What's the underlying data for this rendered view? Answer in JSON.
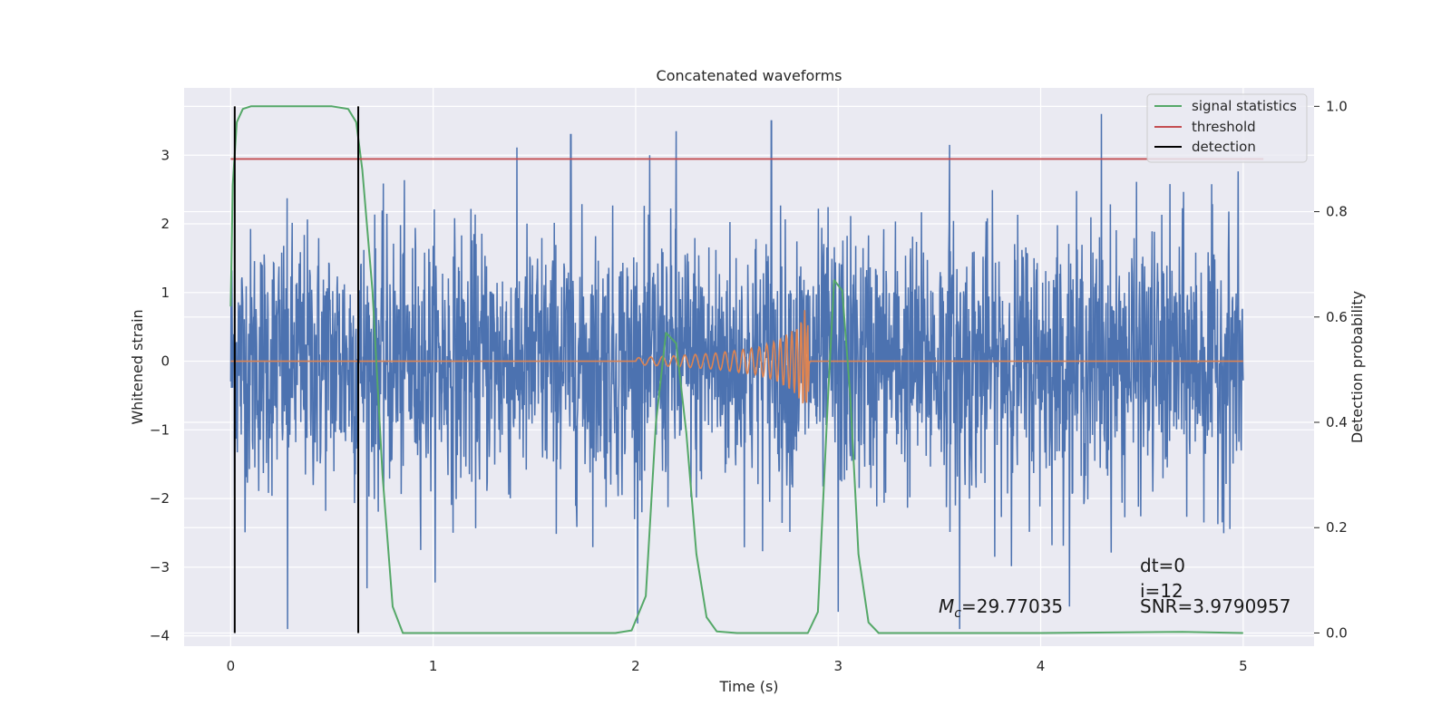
{
  "chart_data": {
    "type": "line",
    "title": "Concatenated waveforms",
    "xlabel": "Time (s)",
    "ylabel": "Whitened strain",
    "y2label": "Detection probability",
    "xlim": [
      -0.23,
      5.35
    ],
    "ylim": [
      -4.15,
      3.98
    ],
    "y2lim": [
      -0.025,
      1.035
    ],
    "x_ticks": [
      0,
      1,
      2,
      3,
      4,
      5
    ],
    "y_ticks": [
      -4,
      -3,
      -2,
      -1,
      0,
      1,
      2,
      3
    ],
    "y2_ticks": [
      0.0,
      0.2,
      0.4,
      0.6,
      0.8,
      1.0
    ],
    "x_tick_labels": [
      "0",
      "1",
      "2",
      "3",
      "4",
      "5"
    ],
    "y_tick_labels": [
      "−4",
      "−3",
      "−2",
      "−1",
      "0",
      "1",
      "2",
      "3"
    ],
    "y2_tick_labels": [
      "0.0",
      "0.2",
      "0.4",
      "0.6",
      "0.8",
      "1.0"
    ],
    "grid": true,
    "legend": {
      "position": "upper right",
      "entries": [
        {
          "label": "signal statistics",
          "color": "#55a868"
        },
        {
          "label": "threshold",
          "color": "#c44e52"
        },
        {
          "label": "detection",
          "color": "#000000"
        }
      ]
    },
    "series": [
      {
        "kind": "noise",
        "color": "#4c72b0",
        "x_range": [
          0,
          5
        ],
        "approx_envelope": [
          -3.9,
          3.6
        ],
        "notable_peaks": [
          {
            "x": 1.68,
            "y": 3.3
          },
          {
            "x": 2.2,
            "y": 3.35
          },
          {
            "x": 2.67,
            "y": 3.5
          },
          {
            "x": 3.55,
            "y": 3.15
          },
          {
            "x": 4.3,
            "y": 3.6
          },
          {
            "x": 0.28,
            "y": -3.9
          },
          {
            "x": 3.6,
            "y": -3.9
          },
          {
            "x": 3.0,
            "y": -3.65
          }
        ]
      },
      {
        "kind": "chirp",
        "color": "#dd8452",
        "x": [
          0,
          2.0,
          2.2,
          2.4,
          2.6,
          2.7,
          2.8,
          2.84,
          2.87,
          5.0
        ],
        "amplitude": [
          0,
          0.05,
          0.08,
          0.12,
          0.2,
          0.3,
          0.5,
          0.8,
          0.3,
          0
        ]
      },
      {
        "name": "signal statistics",
        "color": "#55a868",
        "axis": "right",
        "x": [
          0,
          0.01,
          0.03,
          0.06,
          0.1,
          0.5,
          0.58,
          0.62,
          0.65,
          0.7,
          0.75,
          0.8,
          0.85,
          1.0,
          1.5,
          1.9,
          1.98,
          2.05,
          2.1,
          2.15,
          2.2,
          2.25,
          2.3,
          2.35,
          2.4,
          2.5,
          2.85,
          2.9,
          2.95,
          2.98,
          3.02,
          3.06,
          3.1,
          3.15,
          3.2,
          3.3,
          4.0,
          4.7,
          5.0
        ],
        "y": [
          0.62,
          0.85,
          0.97,
          0.995,
          1.0,
          1.0,
          0.995,
          0.97,
          0.88,
          0.65,
          0.3,
          0.05,
          0.0,
          0.0,
          0.0,
          0.0,
          0.005,
          0.07,
          0.4,
          0.57,
          0.55,
          0.38,
          0.15,
          0.03,
          0.003,
          0.0,
          0.0,
          0.04,
          0.45,
          0.67,
          0.65,
          0.45,
          0.15,
          0.02,
          0.0,
          0.0,
          0.0,
          0.002,
          0.0
        ]
      },
      {
        "name": "threshold",
        "color": "#c44e52",
        "axis": "right",
        "x": [
          0,
          5.1
        ],
        "y": [
          0.9,
          0.9
        ]
      }
    ],
    "detections": {
      "label": "detection",
      "color": "#000000",
      "x": [
        0.02,
        0.63
      ],
      "y2_range": [
        0,
        1
      ]
    },
    "annotations": [
      {
        "text": "dt=0",
        "x": 4.5,
        "y": -3.05
      },
      {
        "text": "i=12",
        "x": 4.5,
        "y": -3.42
      },
      {
        "text": "SNR=3.9790957",
        "x": 4.5,
        "y": -3.64
      },
      {
        "mc_symbol": "M",
        "mc_sub": "c",
        "mc_value": "=29.77035",
        "x": 3.5,
        "y": -3.64
      }
    ]
  }
}
